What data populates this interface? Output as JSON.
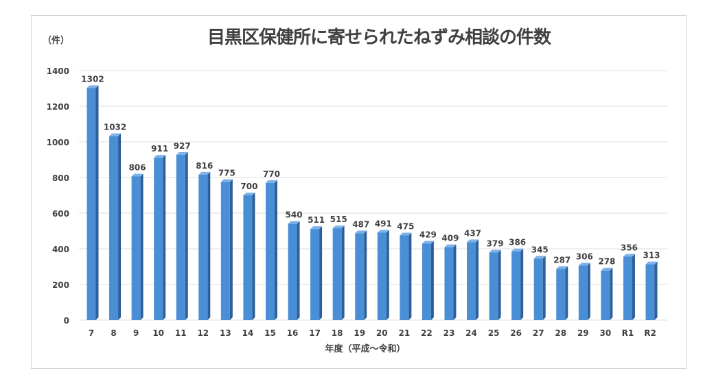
{
  "chart_data": {
    "type": "bar",
    "title": "目黒区保健所に寄せられたねずみ相談の件数",
    "ylabel": "（件）",
    "xlabel": "年度（平成～令和）",
    "categories": [
      "7",
      "8",
      "9",
      "10",
      "11",
      "12",
      "13",
      "14",
      "15",
      "16",
      "17",
      "18",
      "19",
      "20",
      "21",
      "22",
      "23",
      "24",
      "25",
      "26",
      "27",
      "28",
      "29",
      "30",
      "R1",
      "R2"
    ],
    "values": [
      1302,
      1032,
      806,
      911,
      927,
      816,
      775,
      700,
      770,
      540,
      511,
      515,
      487,
      491,
      475,
      429,
      409,
      437,
      379,
      386,
      345,
      287,
      306,
      278,
      356,
      313
    ],
    "ylim": [
      0,
      1400
    ],
    "yticks": [
      0,
      200,
      400,
      600,
      800,
      1000,
      1200,
      1400
    ],
    "grid": true,
    "data_labels": true,
    "bar_color": "#4a8fd6",
    "bar_side_color": "#2d5f99"
  }
}
